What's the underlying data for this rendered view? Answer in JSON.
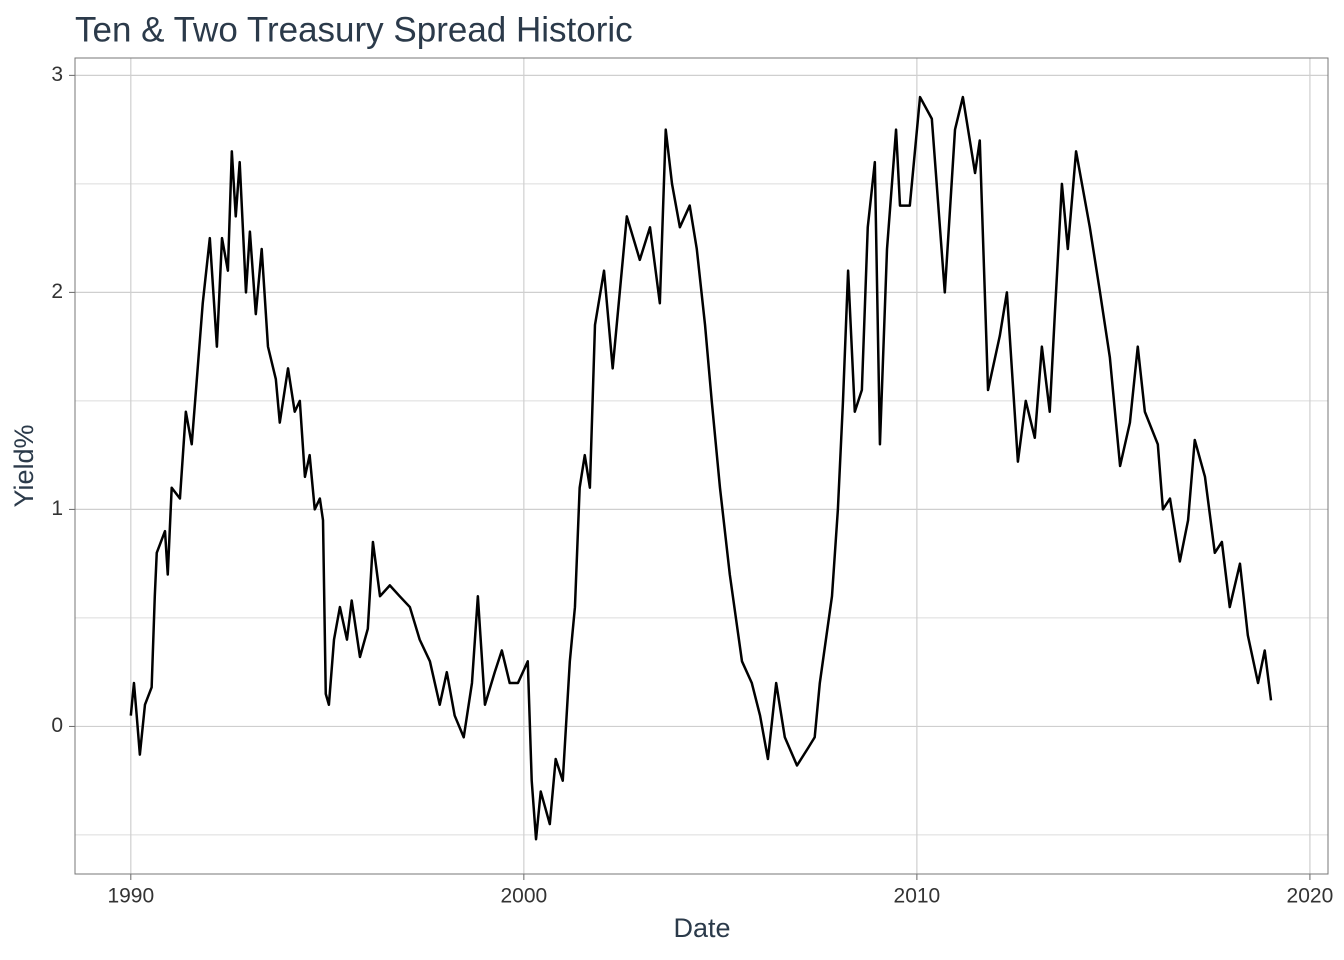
{
  "chart_data": {
    "type": "line",
    "title": "Ten & Two Treasury Spread Historic",
    "x_label": "Date",
    "y_label": "Yield%",
    "xlim": [
      1988.58,
      2020.46
    ],
    "ylim": [
      -0.68,
      3.08
    ],
    "xticks": [
      1990,
      2000,
      2010,
      2020
    ],
    "yticks": [
      0,
      1,
      2,
      3
    ],
    "y_minor_grid": [
      -0.5,
      0.5,
      1.5,
      2.5
    ],
    "grid": true,
    "series": [
      {
        "color": "#000000",
        "x": [
          1990.0,
          1990.08,
          1990.15,
          1990.23,
          1990.36,
          1990.53,
          1990.61,
          1990.66,
          1990.87,
          1990.94,
          1991.04,
          1991.25,
          1991.4,
          1991.55,
          1991.68,
          1991.83,
          1992.01,
          1992.19,
          1992.32,
          1992.47,
          1992.57,
          1992.67,
          1992.77,
          1992.93,
          1993.03,
          1993.18,
          1993.33,
          1993.49,
          1993.69,
          1993.79,
          1994.0,
          1994.17,
          1994.3,
          1994.43,
          1994.55,
          1994.68,
          1994.81,
          1994.89,
          1994.96,
          1995.04,
          1995.17,
          1995.32,
          1995.5,
          1995.62,
          1995.83,
          1996.03,
          1996.16,
          1996.34,
          1996.59,
          1996.84,
          1997.1,
          1997.35,
          1997.61,
          1997.86,
          1998.04,
          1998.24,
          1998.47,
          1998.68,
          1998.83,
          1999.01,
          1999.26,
          1999.44,
          1999.64,
          1999.85,
          2000.1,
          2000.2,
          2000.31,
          2000.43,
          2000.66,
          2000.81,
          2000.99,
          2001.17,
          2001.3,
          2001.42,
          2001.55,
          2001.68,
          2001.81,
          2002.04,
          2002.26,
          2002.62,
          2002.95,
          2003.21,
          2003.46,
          2003.61,
          2003.77,
          2003.97,
          2004.22,
          2004.4,
          2004.61,
          2004.78,
          2004.99,
          2005.24,
          2005.55,
          2005.8,
          2006.01,
          2006.21,
          2006.42,
          2006.64,
          2006.95,
          2007.23,
          2007.4,
          2007.53,
          2007.84,
          2007.99,
          2008.12,
          2008.25,
          2008.42,
          2008.6,
          2008.75,
          2008.93,
          2009.06,
          2009.24,
          2009.47,
          2009.57,
          2009.82,
          2010.08,
          2010.38,
          2010.71,
          2010.97,
          2011.17,
          2011.48,
          2011.6,
          2011.81,
          2012.11,
          2012.29,
          2012.57,
          2012.77,
          2013.0,
          2013.18,
          2013.38,
          2013.51,
          2013.69,
          2013.84,
          2014.05,
          2014.4,
          2014.66,
          2014.91,
          2015.17,
          2015.42,
          2015.62,
          2015.8,
          2016.13,
          2016.26,
          2016.44,
          2016.69,
          2016.9,
          2017.07,
          2017.33,
          2017.58,
          2017.76,
          2017.96,
          2018.22,
          2018.42,
          2018.68,
          2018.85,
          2019.01
        ],
        "values": [
          0.05,
          0.2,
          0.05,
          -0.13,
          0.1,
          0.18,
          0.6,
          0.8,
          0.9,
          0.7,
          1.1,
          1.05,
          1.45,
          1.3,
          1.6,
          1.95,
          2.25,
          1.75,
          2.25,
          2.1,
          2.65,
          2.35,
          2.6,
          2.0,
          2.28,
          1.9,
          2.2,
          1.75,
          1.6,
          1.4,
          1.65,
          1.45,
          1.5,
          1.15,
          1.25,
          1.0,
          1.05,
          0.95,
          0.15,
          0.1,
          0.4,
          0.55,
          0.4,
          0.58,
          0.32,
          0.45,
          0.85,
          0.6,
          0.65,
          0.6,
          0.55,
          0.4,
          0.3,
          0.1,
          0.25,
          0.05,
          -0.05,
          0.2,
          0.6,
          0.1,
          0.25,
          0.35,
          0.2,
          0.2,
          0.3,
          -0.25,
          -0.52,
          -0.3,
          -0.45,
          -0.15,
          -0.25,
          0.3,
          0.55,
          1.1,
          1.25,
          1.1,
          1.85,
          2.1,
          1.65,
          2.35,
          2.15,
          2.3,
          1.95,
          2.75,
          2.5,
          2.3,
          2.4,
          2.2,
          1.85,
          1.5,
          1.1,
          0.7,
          0.3,
          0.2,
          0.05,
          -0.15,
          0.2,
          -0.05,
          -0.18,
          -0.1,
          -0.05,
          0.2,
          0.6,
          1.0,
          1.5,
          2.1,
          1.45,
          1.55,
          2.3,
          2.6,
          1.3,
          2.2,
          2.75,
          2.4,
          2.4,
          2.9,
          2.8,
          2.0,
          2.75,
          2.9,
          2.55,
          2.7,
          1.55,
          1.8,
          2.0,
          1.22,
          1.5,
          1.33,
          1.75,
          1.45,
          1.9,
          2.5,
          2.2,
          2.65,
          2.3,
          2.0,
          1.7,
          1.2,
          1.4,
          1.75,
          1.45,
          1.3,
          1.0,
          1.05,
          0.76,
          0.95,
          1.32,
          1.15,
          0.8,
          0.85,
          0.55,
          0.75,
          0.42,
          0.2,
          0.35,
          0.12
        ]
      }
    ]
  }
}
